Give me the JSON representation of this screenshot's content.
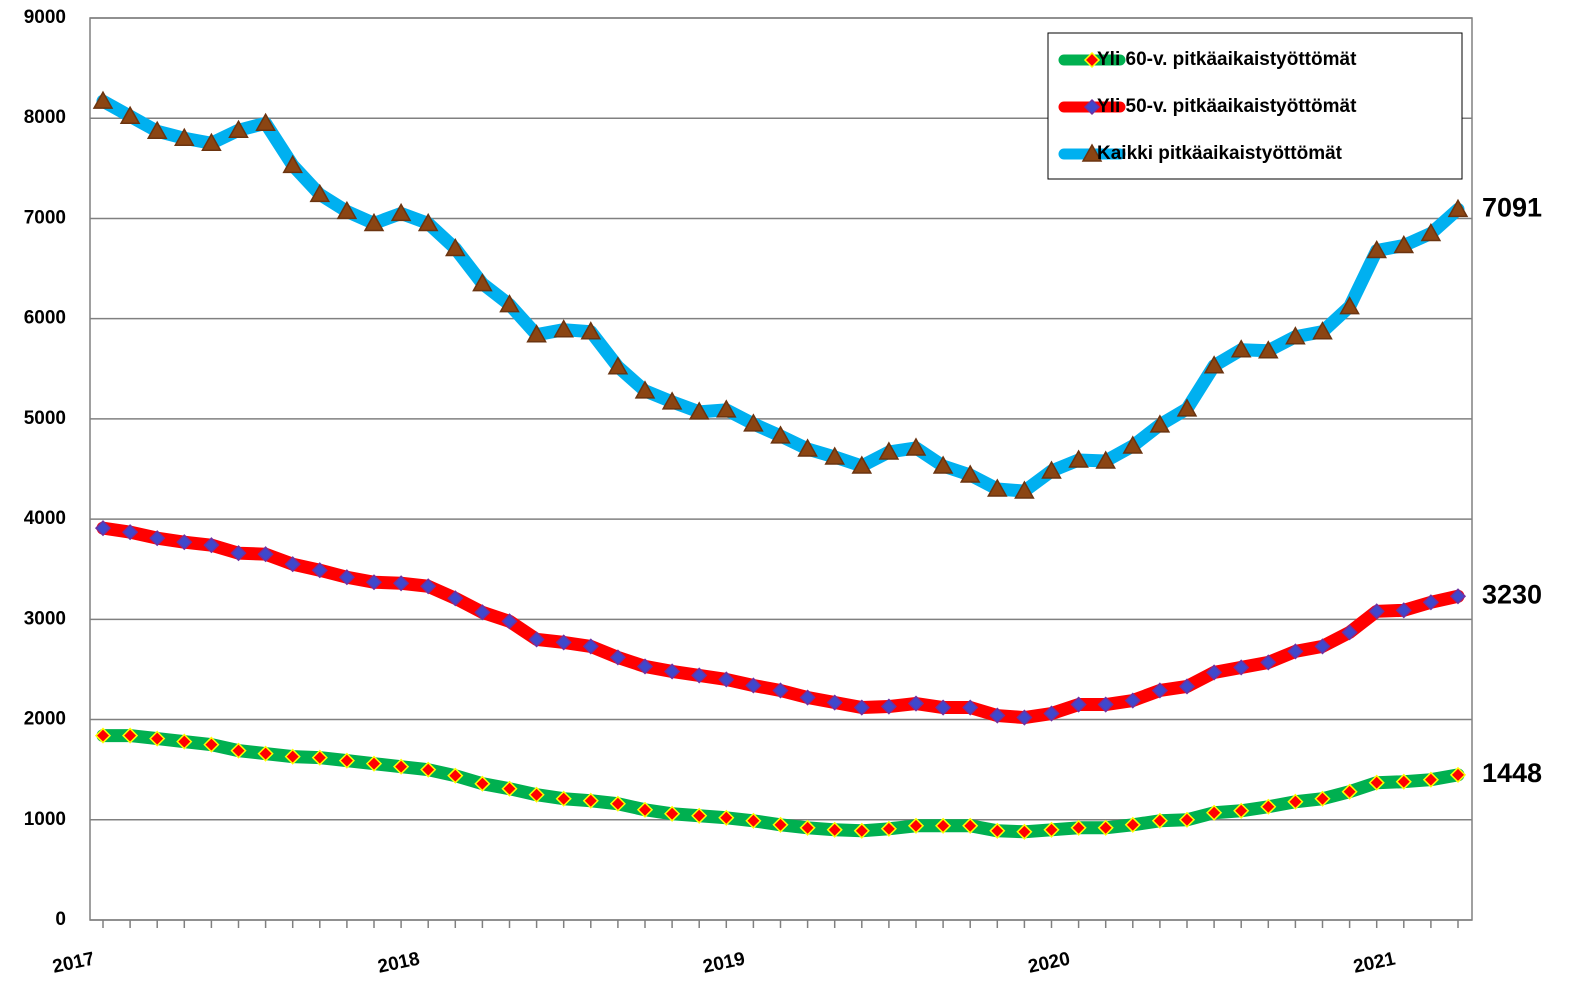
{
  "chart_data": {
    "type": "line",
    "categories": [
      "2017",
      null,
      null,
      null,
      null,
      null,
      null,
      null,
      null,
      null,
      null,
      null,
      "2018",
      null,
      null,
      null,
      null,
      null,
      null,
      null,
      null,
      null,
      null,
      null,
      "2019",
      null,
      null,
      null,
      null,
      null,
      null,
      null,
      null,
      null,
      null,
      null,
      "2020",
      null,
      null,
      null,
      null,
      null,
      null,
      null,
      null,
      null,
      null,
      null,
      "2021",
      null,
      null
    ],
    "ylim": [
      0,
      9000
    ],
    "yticks": [
      0,
      1000,
      2000,
      3000,
      4000,
      5000,
      6000,
      7000,
      8000,
      9000
    ],
    "grid": true,
    "legend": "upper right",
    "series": [
      {
        "name": "Yli 60-v. pitkäaikaistyöttömät",
        "color": "#00b050",
        "marker": "diamond",
        "marker_color": "#ff0000",
        "marker_edge": "#ffff00",
        "values": [
          1840,
          1840,
          1810,
          1780,
          1750,
          1690,
          1660,
          1630,
          1620,
          1590,
          1560,
          1530,
          1500,
          1440,
          1360,
          1310,
          1250,
          1210,
          1190,
          1160,
          1100,
          1060,
          1040,
          1020,
          990,
          950,
          920,
          900,
          890,
          910,
          940,
          940,
          940,
          890,
          880,
          900,
          920,
          920,
          950,
          990,
          1000,
          1070,
          1090,
          1130,
          1180,
          1210,
          1280,
          1370,
          1380,
          1400,
          1448
        ]
      },
      {
        "name": "Yli 50-v. pitkäaikaistyöttömät",
        "color": "#ff0000",
        "marker": "diamond",
        "marker_color": "#3f48cc",
        "marker_edge": "#7030a0",
        "values": [
          3910,
          3870,
          3810,
          3770,
          3740,
          3660,
          3650,
          3550,
          3490,
          3420,
          3370,
          3360,
          3330,
          3210,
          3070,
          2980,
          2800,
          2770,
          2730,
          2620,
          2530,
          2480,
          2440,
          2400,
          2340,
          2290,
          2220,
          2170,
          2120,
          2130,
          2160,
          2120,
          2120,
          2040,
          2020,
          2060,
          2150,
          2150,
          2190,
          2290,
          2330,
          2470,
          2520,
          2570,
          2680,
          2730,
          2870,
          3080,
          3090,
          3170,
          3230
        ]
      },
      {
        "name": "Kaikki pitkäaikaistyöttömät",
        "color": "#00b0f0",
        "marker": "triangle",
        "marker_color": "#8b4513",
        "marker_edge": "#6b3410",
        "values": [
          8170,
          8020,
          7870,
          7800,
          7750,
          7880,
          7950,
          7530,
          7240,
          7070,
          6950,
          7050,
          6950,
          6700,
          6350,
          6140,
          5840,
          5890,
          5870,
          5520,
          5280,
          5170,
          5070,
          5090,
          4950,
          4830,
          4700,
          4620,
          4530,
          4670,
          4710,
          4530,
          4440,
          4300,
          4280,
          4480,
          4590,
          4580,
          4730,
          4940,
          5100,
          5530,
          5690,
          5680,
          5820,
          5870,
          6120,
          6680,
          6730,
          6850,
          7091
        ]
      }
    ]
  }
}
